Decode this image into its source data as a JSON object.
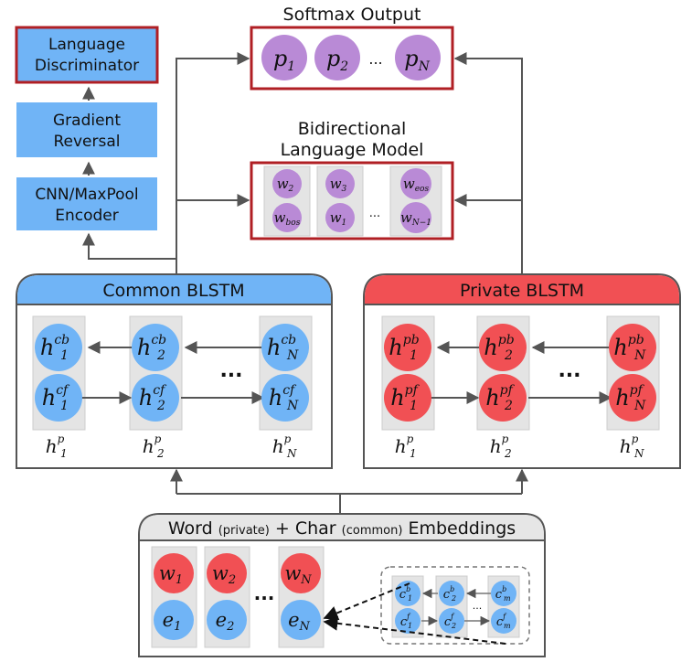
{
  "colors": {
    "blue": "#70b4f6",
    "red": "#f15054",
    "purple": "#b98ad6",
    "dark_red": "#b01f24",
    "cell_gray": "#e4e4e4",
    "border_gray": "#555555"
  },
  "softmax": {
    "title": "Softmax Output",
    "p1": {
      "base": "p",
      "sub": "1"
    },
    "p2": {
      "base": "p",
      "sub": "2"
    },
    "pN": {
      "base": "p",
      "sub": "N"
    },
    "ellipsis": "..."
  },
  "bilm": {
    "title_line1": "Bidirectional",
    "title_line2": "Language Model",
    "col1": {
      "top": {
        "base": "w",
        "sub": "2"
      },
      "bottom": {
        "base": "w",
        "sub": "bos"
      }
    },
    "col2": {
      "top": {
        "base": "w",
        "sub": "3"
      },
      "bottom": {
        "base": "w",
        "sub": "1"
      }
    },
    "col3": {
      "top": {
        "base": "w",
        "sub": "eos"
      },
      "bottom": {
        "base": "w",
        "sub": "N−1"
      }
    },
    "ellipsis": "..."
  },
  "left_stack": {
    "discriminator_line1": "Language",
    "discriminator_line2": "Discriminator",
    "reversal_line1": "Gradient",
    "reversal_line2": "Reversal",
    "encoder_line1": "CNN/MaxPool",
    "encoder_line2": "Encoder"
  },
  "common_blstm": {
    "title": "Common BLSTM",
    "col1": {
      "top": {
        "base": "h",
        "sub": "1",
        "sup": "cb"
      },
      "bottom": {
        "base": "h",
        "sub": "1",
        "sup": "cf"
      },
      "label": {
        "base": "h",
        "sub": "1",
        "sup": "p"
      }
    },
    "col2": {
      "top": {
        "base": "h",
        "sub": "2",
        "sup": "cb"
      },
      "bottom": {
        "base": "h",
        "sub": "2",
        "sup": "cf"
      },
      "label": {
        "base": "h",
        "sub": "2",
        "sup": "p"
      }
    },
    "col3": {
      "top": {
        "base": "h",
        "sub": "N",
        "sup": "cb"
      },
      "bottom": {
        "base": "h",
        "sub": "N",
        "sup": "cf"
      },
      "label": {
        "base": "h",
        "sub": "N",
        "sup": "p"
      }
    },
    "ellipsis": "..."
  },
  "private_blstm": {
    "title": "Private BLSTM",
    "col1": {
      "top": {
        "base": "h",
        "sub": "1",
        "sup": "pb"
      },
      "bottom": {
        "base": "h",
        "sub": "1",
        "sup": "pf"
      },
      "label": {
        "base": "h",
        "sub": "1",
        "sup": "p"
      }
    },
    "col2": {
      "top": {
        "base": "h",
        "sub": "2",
        "sup": "pb"
      },
      "bottom": {
        "base": "h",
        "sub": "2",
        "sup": "pf"
      },
      "label": {
        "base": "h",
        "sub": "2",
        "sup": "p"
      }
    },
    "col3": {
      "top": {
        "base": "h",
        "sub": "N",
        "sup": "pb"
      },
      "bottom": {
        "base": "h",
        "sub": "N",
        "sup": "pf"
      },
      "label": {
        "base": "h",
        "sub": "N",
        "sup": "p"
      }
    },
    "ellipsis": "..."
  },
  "embeddings": {
    "title_word": "Word",
    "title_private": "(private)",
    "title_plus": "+",
    "title_char": "Char",
    "title_common": "(common)",
    "title_embeddings": "Embeddings",
    "col1": {
      "top": {
        "base": "w",
        "sub": "1"
      },
      "bottom": {
        "base": "e",
        "sub": "1"
      }
    },
    "col2": {
      "top": {
        "base": "w",
        "sub": "2"
      },
      "bottom": {
        "base": "e",
        "sub": "2"
      }
    },
    "col3": {
      "top": {
        "base": "w",
        "sub": "N"
      },
      "bottom": {
        "base": "e",
        "sub": "N"
      }
    },
    "ellipsis": "...",
    "char_lstm": {
      "c1b": {
        "base": "c",
        "sub": "1",
        "sup": "b"
      },
      "c2b": {
        "base": "c",
        "sub": "2",
        "sup": "b"
      },
      "cmb": {
        "base": "c",
        "sub": "m",
        "sup": "b"
      },
      "c1f": {
        "base": "c",
        "sub": "1",
        "sup": "f"
      },
      "c2f": {
        "base": "c",
        "sub": "2",
        "sup": "f"
      },
      "cmf": {
        "base": "c",
        "sub": "m",
        "sup": "f"
      },
      "ellipsis": "..."
    }
  }
}
